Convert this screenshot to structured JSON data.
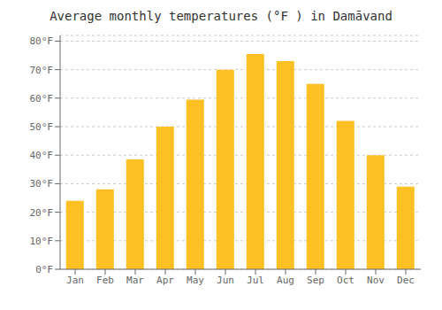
{
  "chart_data": {
    "type": "bar",
    "title": "Average monthly temperatures (°F ) in Damāvand",
    "categories": [
      "Jan",
      "Feb",
      "Mar",
      "Apr",
      "May",
      "Jun",
      "Jul",
      "Aug",
      "Sep",
      "Oct",
      "Nov",
      "Dec"
    ],
    "values": [
      24,
      28,
      38.5,
      50,
      59.5,
      70,
      75.5,
      73,
      65,
      52,
      40,
      29
    ],
    "color": "#FFC024",
    "ylim": [
      0,
      82
    ],
    "yticks": [
      {
        "value": 0,
        "label": "0°F"
      },
      {
        "value": 10,
        "label": "10°F"
      },
      {
        "value": 20,
        "label": "20°F"
      },
      {
        "value": 30,
        "label": "30°F"
      },
      {
        "value": 40,
        "label": "40°F"
      },
      {
        "value": 50,
        "label": "50°F"
      },
      {
        "value": 60,
        "label": "60°F"
      },
      {
        "value": 70,
        "label": "70°F"
      },
      {
        "value": 80,
        "label": "80°F"
      }
    ],
    "grid": true
  }
}
